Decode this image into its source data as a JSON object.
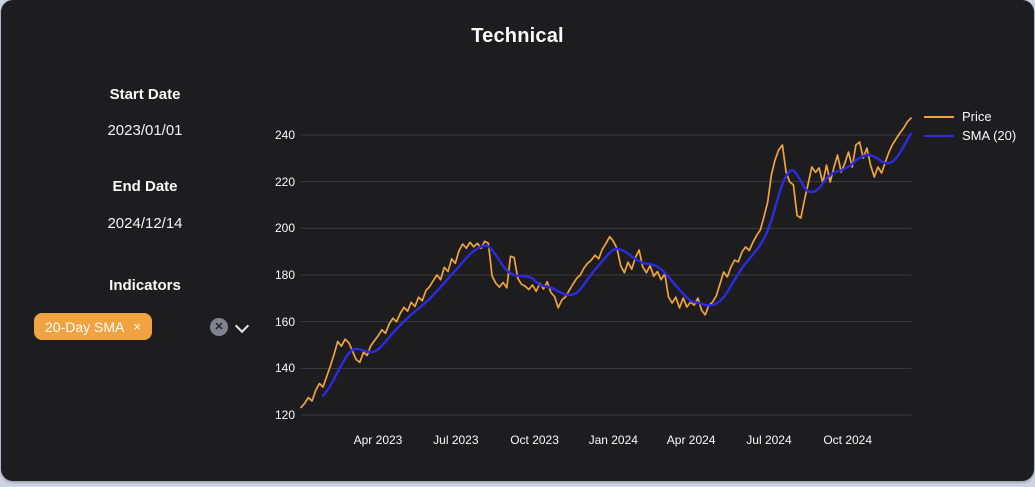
{
  "page": {
    "title": "Technical"
  },
  "sidebar": {
    "start_date": {
      "label": "Start Date",
      "value": "2023/01/01"
    },
    "end_date": {
      "label": "End Date",
      "value": "2024/12/14"
    },
    "indicators": {
      "label": "Indicators",
      "selected_tags": [
        {
          "label": "20-Day SMA",
          "remove_icon": "×"
        }
      ],
      "clear_all_icon": "✕"
    }
  },
  "colors": {
    "panel_bg": "#1d1d1f",
    "page_bg": "#cdd4e3",
    "accent_orange": "#f0a340",
    "sma_blue": "#2b2be2",
    "gridline": "#3d3d42",
    "text": "#fafafa"
  },
  "chart_data": {
    "type": "line",
    "title": "",
    "xlabel": "",
    "ylabel": "",
    "grid": true,
    "legend_position": "top-right",
    "x_range": [
      "2023/01/01",
      "2024/12/14"
    ],
    "x_tick_labels": [
      "Apr 2023",
      "Jul 2023",
      "Oct 2023",
      "Jan 2024",
      "Apr 2024",
      "Jul 2024",
      "Oct 2024"
    ],
    "x_tick_day_offsets": [
      90,
      181,
      273,
      365,
      456,
      547,
      639
    ],
    "total_days": 713,
    "y_ticks": [
      120,
      140,
      160,
      180,
      200,
      220,
      240
    ],
    "ylim": [
      118,
      252
    ],
    "series": [
      {
        "name": "Price",
        "color": "#f0a340",
        "values": [
          123.2,
          125.0,
          127.5,
          126.0,
          130.5,
          133.5,
          132.0,
          136.5,
          141.0,
          146.0,
          151.5,
          149.5,
          152.5,
          151.0,
          147.5,
          143.8,
          142.6,
          146.9,
          145.5,
          149.7,
          151.9,
          154.0,
          156.5,
          155.0,
          159.0,
          161.5,
          160.0,
          163.5,
          166.1,
          164.5,
          168.3,
          166.5,
          170.5,
          169.0,
          173.3,
          175.0,
          177.6,
          180.0,
          178.0,
          183.3,
          181.5,
          186.9,
          185.0,
          190.4,
          193.3,
          191.5,
          194.0,
          192.1,
          193.6,
          191.4,
          194.5,
          193.6,
          179.5,
          176.5,
          174.8,
          176.8,
          174.5,
          188.0,
          187.5,
          178.6,
          176.0,
          175.2,
          173.8,
          175.7,
          173.0,
          176.4,
          174.0,
          177.1,
          172.5,
          170.7,
          166.0,
          169.3,
          170.7,
          173.5,
          176.0,
          178.5,
          180.0,
          183.0,
          185.0,
          186.4,
          188.5,
          187.0,
          191.0,
          193.6,
          196.4,
          194.5,
          191.4,
          184.0,
          181.0,
          185.5,
          182.5,
          187.5,
          190.7,
          183.5,
          181.0,
          184.0,
          179.5,
          181.5,
          178.0,
          180.5,
          170.6,
          168.0,
          170.5,
          165.9,
          170.1,
          166.3,
          168.4,
          167.1,
          170.1,
          165.0,
          162.9,
          167.1,
          168.4,
          171.0,
          176.0,
          181.3,
          179.2,
          183.4,
          186.4,
          185.6,
          189.9,
          192.0,
          190.5,
          194.1,
          197.0,
          199.3,
          205.0,
          211.3,
          222.9,
          229.3,
          233.6,
          235.7,
          224.1,
          219.9,
          218.6,
          205.5,
          204.4,
          212.0,
          219.0,
          226.3,
          224.0,
          225.9,
          219.4,
          227.1,
          219.8,
          225.9,
          231.4,
          224.1,
          228.0,
          232.7,
          226.3,
          235.7,
          237.0,
          230.1,
          234.4,
          227.0,
          222.0,
          226.3,
          223.7,
          228.4,
          232.7,
          236.0,
          238.5,
          240.9,
          243.0,
          245.6,
          247.3
        ]
      },
      {
        "name": "SMA (20)",
        "color": "#2b2be2",
        "derived": "20-day simple moving average of Price",
        "sma_window_days": 20
      }
    ]
  }
}
